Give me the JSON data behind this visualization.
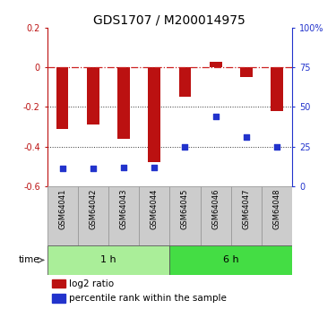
{
  "title": "GDS1707 / M200014975",
  "samples": [
    "GSM64041",
    "GSM64042",
    "GSM64043",
    "GSM64044",
    "GSM64045",
    "GSM64046",
    "GSM64047",
    "GSM64048"
  ],
  "log2_ratio": [
    -0.31,
    -0.29,
    -0.36,
    -0.48,
    -0.15,
    0.03,
    -0.05,
    -0.22
  ],
  "percentile_rank": [
    11,
    11,
    12,
    12,
    25,
    44,
    31,
    25
  ],
  "groups": [
    {
      "label": "1 h",
      "start": 0,
      "end": 4,
      "color": "#aaee99"
    },
    {
      "label": "6 h",
      "start": 4,
      "end": 8,
      "color": "#44dd44"
    }
  ],
  "ylim_left": [
    -0.6,
    0.2
  ],
  "ylim_right": [
    0,
    100
  ],
  "yticks_left": [
    -0.6,
    -0.4,
    -0.2,
    0.0,
    0.2
  ],
  "yticks_right": [
    0,
    25,
    50,
    75,
    100
  ],
  "ytick_labels_right": [
    "0",
    "25",
    "50",
    "75",
    "100%"
  ],
  "bar_color": "#bb1111",
  "dot_color": "#2233cc",
  "hline_color": "#cc2222",
  "grid_color": "#333333",
  "bg_color": "#ffffff",
  "plot_bg": "#ffffff",
  "sample_box_color": "#cccccc",
  "sample_box_edge": "#999999",
  "time_label": "time",
  "legend_log2": "log2 ratio",
  "legend_pct": "percentile rank within the sample",
  "title_fontsize": 10,
  "tick_fontsize": 7,
  "sample_fontsize": 6,
  "group_fontsize": 8,
  "legend_fontsize": 7.5
}
